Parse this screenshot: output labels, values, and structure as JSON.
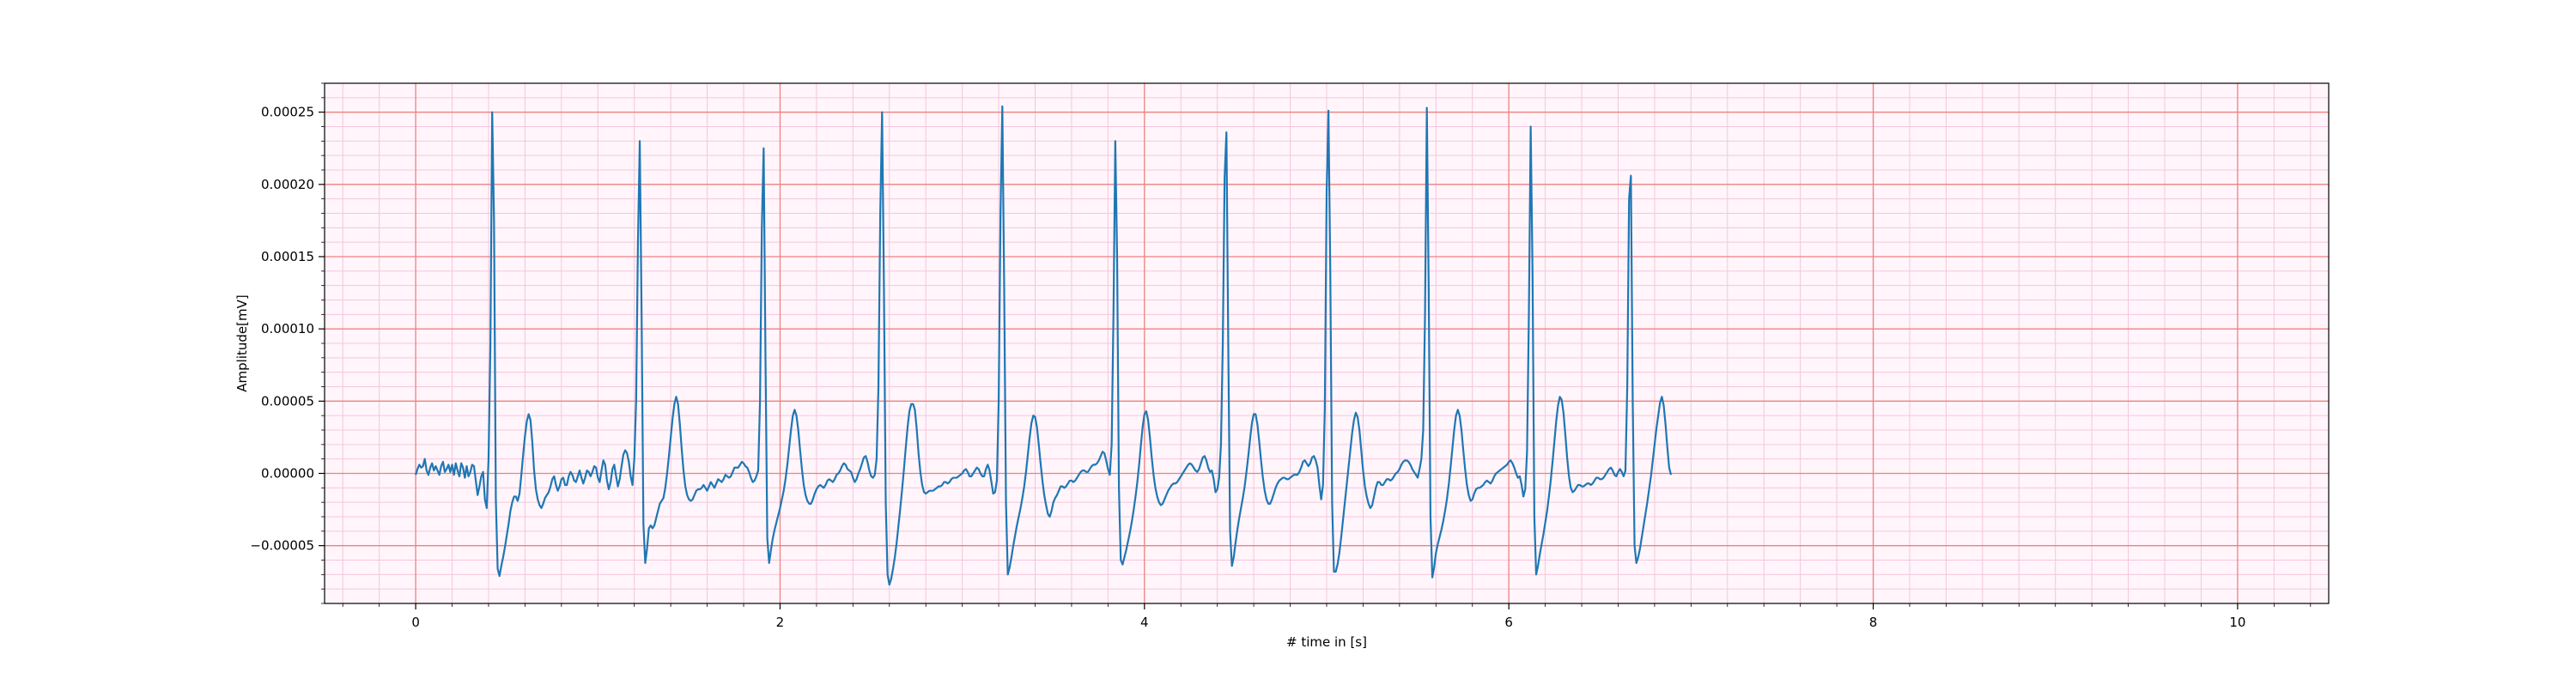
{
  "chart_data": {
    "type": "line",
    "title": "",
    "xlabel": "# time in [s]",
    "ylabel": "Amplitude[mV]",
    "xlim": [
      -0.5,
      10.5
    ],
    "ylim": [
      -9e-05,
      0.00027
    ],
    "x_ticks": [
      0,
      2,
      4,
      6,
      8,
      10
    ],
    "x_tick_labels": [
      "0",
      "2",
      "4",
      "6",
      "8",
      "10"
    ],
    "y_ticks": [
      -5e-05,
      0.0,
      5e-05,
      0.0001,
      0.00015,
      0.0002,
      0.00025
    ],
    "y_tick_labels": [
      "−0.00005",
      "0.00000",
      "0.00005",
      "0.00010",
      "0.00015",
      "0.00020",
      "0.00025"
    ],
    "grid": "major and minor (ECG paper style)",
    "colors": {
      "line": "#1f77b4",
      "major_grid": "#f08080",
      "minor_grid": "#f4c6dc",
      "plot_background": "#fff5fa"
    },
    "sample_rate_hz": 100,
    "series": [
      {
        "values": [
          -1e-06,
          3e-06,
          6e-06,
          4e-06,
          5e-06,
          1e-05,
          2e-06,
          -1e-06,
          4e-06,
          7e-06,
          2e-06,
          5e-06,
          2e-06,
          -1e-06,
          5e-06,
          8e-06,
          1e-06,
          3e-06,
          6e-06,
          1e-06,
          6e-06,
          -1e-06,
          7e-06,
          2e-06,
          -2e-06,
          7e-06,
          4e-06,
          -3e-06,
          5e-06,
          -2e-06,
          1e-06,
          6e-06,
          5e-06,
          -5e-06,
          -1.5e-05,
          -9e-06,
          -2e-06,
          1e-06,
          -1.8e-05,
          -2.4e-05,
          1e-05,
          8.8e-05,
          0.00025,
          0.000175,
          -1.8e-05,
          -6.6e-05,
          -7.1e-05,
          -6.4e-05,
          -5.8e-05,
          -5.1e-05,
          -4.3e-05,
          -3.5e-05,
          -2.6e-05,
          -2e-05,
          -1.6e-05,
          -1.6e-05,
          -1.9e-05,
          -1.4e-05,
          -1e-06,
          1.3e-05,
          2.6e-05,
          3.6e-05,
          4.1e-05,
          3.7e-05,
          2.2e-05,
          2e-06,
          -1.1e-05,
          -1.8e-05,
          -2.2e-05,
          -2.4e-05,
          -2.1e-05,
          -1.7e-05,
          -1.5e-05,
          -1.3e-05,
          -9e-06,
          -4e-06,
          -2e-06,
          -8e-06,
          -1.2e-05,
          -9e-06,
          -4e-06,
          -3e-06,
          -8e-06,
          -8e-06,
          -2e-06,
          1e-06,
          -1e-06,
          -5e-06,
          -6e-06,
          -2e-06,
          2e-06,
          -3e-06,
          -7e-06,
          -3e-06,
          2e-06,
          1e-06,
          -2e-06,
          1e-06,
          5e-06,
          4e-06,
          -3e-06,
          -6e-06,
          2e-06,
          9e-06,
          6e-06,
          -5e-06,
          -1.1e-05,
          -6e-06,
          3e-06,
          6e-06,
          -2e-06,
          -9e-06,
          -4e-06,
          5e-06,
          1.3e-05,
          1.6e-05,
          1.4e-05,
          8e-06,
          -2e-06,
          -8e-06,
          1e-05,
          5e-05,
          0.00016,
          0.00023,
          0.00011,
          -3.5e-05,
          -6.2e-05,
          -5.2e-05,
          -3.8e-05,
          -3.6e-05,
          -3.8e-05,
          -3.6e-05,
          -3.1e-05,
          -2.6e-05,
          -2.1e-05,
          -1.9e-05,
          -1.7e-05,
          -1e-05,
          0.0,
          1.2e-05,
          2.5e-05,
          3.8e-05,
          4.8e-05,
          5.3e-05,
          4.8e-05,
          3.4e-05,
          1.7e-05,
          2e-06,
          -9e-06,
          -1.5e-05,
          -1.8e-05,
          -1.9e-05,
          -1.8e-05,
          -1.5e-05,
          -1.2e-05,
          -1.1e-05,
          -1.1e-05,
          -1e-05,
          -8e-06,
          -1e-05,
          -1.2e-05,
          -9e-06,
          -6e-06,
          -8e-06,
          -1e-05,
          -7e-06,
          -4e-06,
          -5e-06,
          -6e-06,
          -4e-06,
          -1e-06,
          -2e-06,
          -3e-06,
          -2e-06,
          1e-06,
          4e-06,
          4e-06,
          4e-06,
          6e-06,
          8e-06,
          7e-06,
          5e-06,
          4e-06,
          1e-06,
          -3e-06,
          -6e-06,
          -5e-06,
          -2e-06,
          2e-06,
          5e-05,
          0.00017,
          0.000225,
          8e-05,
          -4.5e-05,
          -6.2e-05,
          -5.3e-05,
          -4.5e-05,
          -3.9e-05,
          -3.4e-05,
          -2.9e-05,
          -2.4e-05,
          -1.8e-05,
          -1.2e-05,
          -4e-06,
          6e-06,
          1.8e-05,
          3e-05,
          4e-05,
          4.4e-05,
          4e-05,
          3e-05,
          1.6e-05,
          3e-06,
          -8e-06,
          -1.5e-05,
          -1.9e-05,
          -2.1e-05,
          -2.1e-05,
          -1.8e-05,
          -1.4e-05,
          -1.1e-05,
          -9e-06,
          -8e-06,
          -9e-06,
          -1e-05,
          -8e-06,
          -5e-06,
          -4e-06,
          -5e-06,
          -6e-06,
          -4e-06,
          -1e-06,
          0.0,
          2e-06,
          5e-06,
          7e-06,
          6e-06,
          3e-06,
          2e-06,
          1e-06,
          -3e-06,
          -6e-06,
          -4e-06,
          0.0,
          3e-06,
          7e-06,
          1.1e-05,
          1.2e-05,
          8e-06,
          2e-06,
          -2e-06,
          -3e-06,
          -1e-06,
          1e-05,
          6e-05,
          0.00018,
          0.00025,
          0.00013,
          -2e-05,
          -7e-05,
          -7.7e-05,
          -7.3e-05,
          -6.6e-05,
          -5.8e-05,
          -4.8e-05,
          -3.6e-05,
          -2.4e-05,
          -1.1e-05,
          3e-06,
          1.8e-05,
          3.2e-05,
          4.3e-05,
          4.8e-05,
          4.8e-05,
          4.4e-05,
          3.1e-05,
          1.4e-05,
          1e-06,
          -8e-06,
          -1.3e-05,
          -1.4e-05,
          -1.3e-05,
          -1.2e-05,
          -1.2e-05,
          -1.2e-05,
          -1.1e-05,
          -1e-05,
          -9e-06,
          -9e-06,
          -8e-06,
          -6e-06,
          -6e-06,
          -7e-06,
          -6e-06,
          -4e-06,
          -3e-06,
          -3e-06,
          -3e-06,
          -2e-06,
          -1e-06,
          0.0,
          2e-06,
          3e-06,
          1e-06,
          -2e-06,
          -2e-06,
          0.0,
          2e-06,
          4e-06,
          3e-06,
          0.0,
          -2e-06,
          -2e-06,
          3e-06,
          6e-06,
          2e-06,
          -6e-06,
          -1.4e-05,
          -1.3e-05,
          -5e-06,
          5e-05,
          0.00018,
          0.000254,
          0.00013,
          -2e-05,
          -7e-05,
          -6.5e-05,
          -5.8e-05,
          -5e-05,
          -4.3e-05,
          -3.6e-05,
          -3e-05,
          -2.4e-05,
          -1.7e-05,
          -9e-06,
          1e-06,
          1.3e-05,
          2.5e-05,
          3.5e-05,
          4e-05,
          3.9e-05,
          3.2e-05,
          2e-05,
          7e-06,
          -5e-06,
          -1.5e-05,
          -2.2e-05,
          -2.8e-05,
          -3e-05,
          -2.6e-05,
          -2e-05,
          -1.7e-05,
          -1.5e-05,
          -1.2e-05,
          -9e-06,
          -9e-06,
          -1e-05,
          -9e-06,
          -7e-06,
          -5e-06,
          -5e-06,
          -6e-06,
          -5e-06,
          -3e-06,
          -1e-06,
          1e-06,
          2e-06,
          2e-06,
          1e-06,
          1e-06,
          3e-06,
          5e-06,
          6e-06,
          6e-06,
          7e-06,
          9e-06,
          1.2e-05,
          1.5e-05,
          1.4e-05,
          9e-06,
          3e-06,
          -1e-06,
          2e-05,
          0.00011,
          0.00023,
          0.00015,
          -1e-05,
          -6e-05,
          -6.3e-05,
          -5.8e-05,
          -5.3e-05,
          -4.7e-05,
          -4.1e-05,
          -3.4e-05,
          -2.6e-05,
          -1.7e-05,
          -7e-06,
          5e-06,
          1.9e-05,
          3.2e-05,
          4.1e-05,
          4.3e-05,
          3.7e-05,
          2.5e-05,
          1.1e-05,
          -1e-06,
          -1e-05,
          -1.6e-05,
          -2e-05,
          -2.2e-05,
          -2.1e-05,
          -1.8e-05,
          -1.5e-05,
          -1.2e-05,
          -1e-05,
          -8e-06,
          -7e-06,
          -7e-06,
          -6e-06,
          -4e-06,
          -2e-06,
          0.0,
          2e-06,
          4e-06,
          6e-06,
          7e-06,
          6e-06,
          4e-06,
          2e-06,
          1e-06,
          3e-06,
          7e-06,
          1.1e-05,
          1.2e-05,
          9e-06,
          4e-06,
          1e-06,
          2e-06,
          -4e-06,
          -1.3e-05,
          -1.1e-05,
          -3e-06,
          2e-05,
          9e-05,
          0.000205,
          0.000236,
          9e-05,
          -4e-05,
          -6.4e-05,
          -5.8e-05,
          -4.8e-05,
          -3.9e-05,
          -3.1e-05,
          -2.4e-05,
          -1.7e-05,
          -9e-06,
          1e-06,
          1.2e-05,
          2.4e-05,
          3.5e-05,
          4.1e-05,
          4.1e-05,
          3.4e-05,
          2.2e-05,
          9e-06,
          -3e-06,
          -1.2e-05,
          -1.8e-05,
          -2.1e-05,
          -2.1e-05,
          -1.8e-05,
          -1.4e-05,
          -1e-05,
          -7e-06,
          -5e-06,
          -4e-06,
          -3e-06,
          -3e-06,
          -4e-06,
          -4e-06,
          -3e-06,
          -2e-06,
          -1e-06,
          -1e-06,
          -1e-06,
          1e-06,
          4e-06,
          8e-06,
          9e-06,
          7e-06,
          5e-06,
          7e-06,
          1.1e-05,
          1.2e-05,
          9e-06,
          4e-06,
          -8e-06,
          -1.8e-05,
          -8e-06,
          4.5e-05,
          0.000195,
          0.000251,
          0.00014,
          -2e-05,
          -6.8e-05,
          -6.8e-05,
          -6.3e-05,
          -5.5e-05,
          -4.4e-05,
          -3.2e-05,
          -2e-05,
          -8e-06,
          4e-06,
          1.6e-05,
          2.8e-05,
          3.7e-05,
          4.2e-05,
          3.9e-05,
          3e-05,
          1.6e-05,
          2e-06,
          -9e-06,
          -1.6e-05,
          -2.1e-05,
          -2.4e-05,
          -2.2e-05,
          -1.6e-05,
          -1e-05,
          -6e-06,
          -6e-06,
          -8e-06,
          -8e-06,
          -6e-06,
          -4e-06,
          -4e-06,
          -5e-06,
          -4e-06,
          -2e-06,
          0.0,
          1e-06,
          3e-06,
          6e-06,
          8e-06,
          9e-06,
          9e-06,
          8e-06,
          6e-06,
          3e-06,
          1e-06,
          -1e-06,
          -3e-06,
          3e-06,
          1e-05,
          3e-05,
          0.00011,
          0.000253,
          0.00013,
          -3e-05,
          -7.2e-05,
          -6.5e-05,
          -5.5e-05,
          -4.9e-05,
          -4.4e-05,
          -3.9e-05,
          -3.3e-05,
          -2.6e-05,
          -1.8e-05,
          -8e-06,
          4e-06,
          1.7e-05,
          3e-05,
          4e-05,
          4.4e-05,
          4e-05,
          3e-05,
          1.6e-05,
          3e-06,
          -8e-06,
          -1.5e-05,
          -1.9e-05,
          -1.8e-05,
          -1.4e-05,
          -1.1e-05,
          -1e-05,
          -1e-05,
          -9e-06,
          -8e-06,
          -6e-06,
          -5e-06,
          -6e-06,
          -7e-06,
          -5e-06,
          -2e-06,
          0.0,
          1e-06,
          2e-06,
          3e-06,
          4e-06,
          5e-06,
          6e-06,
          8e-06,
          9e-06,
          7e-06,
          4e-06,
          0.0,
          -3e-06,
          -2e-06,
          -8e-06,
          -1.6e-05,
          -1.1e-05,
          1.5e-05,
          0.00011,
          0.00024,
          0.00014,
          -3e-05,
          -7e-05,
          -6.4e-05,
          -5.6e-05,
          -4.9e-05,
          -4.2e-05,
          -3.4e-05,
          -2.6e-05,
          -1.6e-05,
          -5e-06,
          8e-06,
          2.2e-05,
          3.6e-05,
          4.7e-05,
          5.3e-05,
          5.1e-05,
          4.2e-05,
          2.7e-05,
          1.1e-05,
          -2e-06,
          -1e-05,
          -1.3e-05,
          -1.2e-05,
          -1e-05,
          -8e-06,
          -8e-06,
          -9e-06,
          -9e-06,
          -8e-06,
          -7e-06,
          -7e-06,
          -8e-06,
          -7e-06,
          -5e-06,
          -3e-06,
          -3e-06,
          -4e-06,
          -4e-06,
          -3e-06,
          -1e-06,
          1e-06,
          3e-06,
          4e-06,
          2e-06,
          -1e-06,
          -2e-06,
          1e-06,
          3e-06,
          1e-06,
          -2e-06,
          2e-06,
          6e-05,
          0.00019,
          0.000206,
          5e-05,
          -5e-05,
          -6.2e-05,
          -5.8e-05,
          -5.2e-05,
          -4.4e-05,
          -3.6e-05,
          -2.8e-05,
          -2e-05,
          -1.1e-05,
          -2e-06,
          9e-06,
          2e-05,
          3.1e-05,
          4e-05,
          4.9e-05,
          5.3e-05,
          4.7e-05,
          3.4e-05,
          1.8e-05,
          4e-06,
          -1e-06
        ]
      }
    ]
  }
}
